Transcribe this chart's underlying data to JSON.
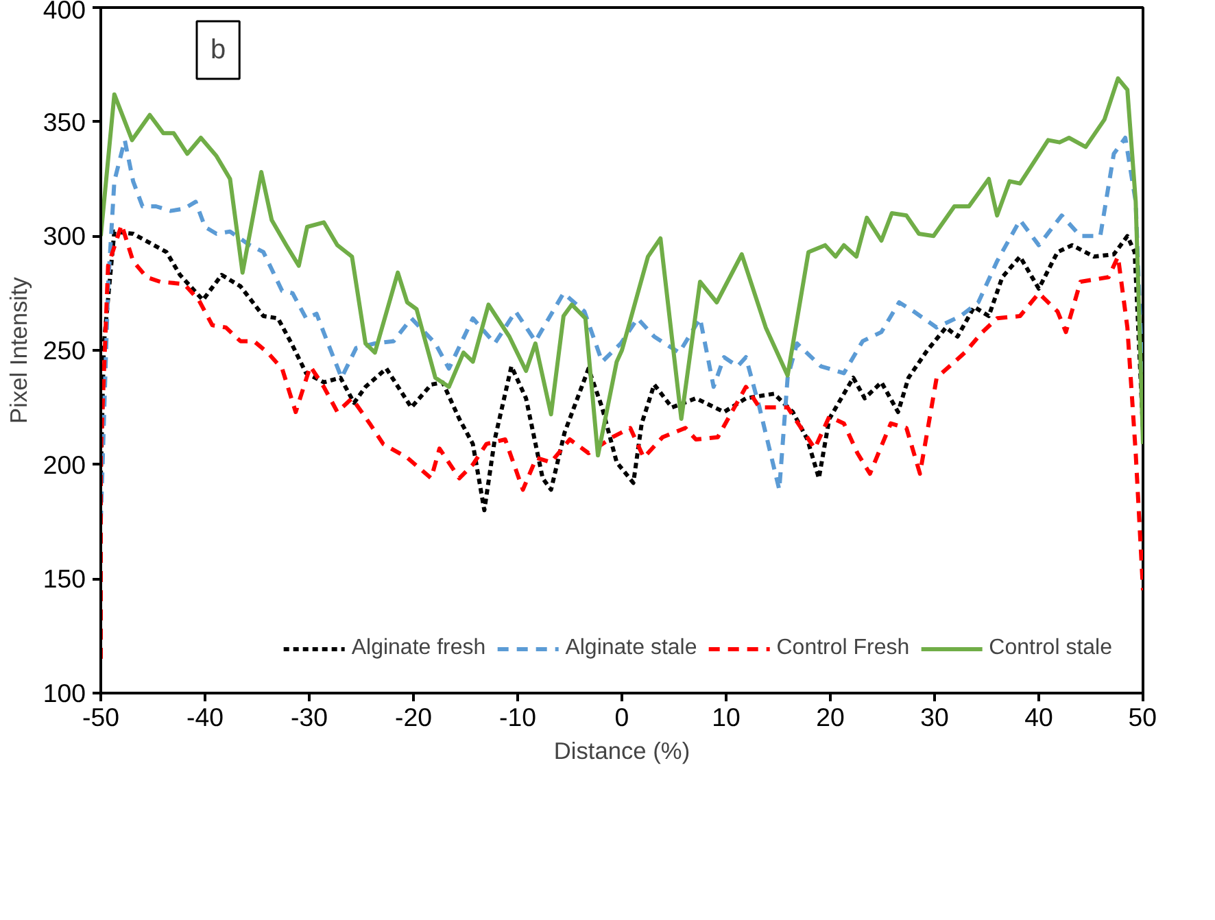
{
  "chart_data": {
    "type": "line",
    "xlabel": "Distance (%)",
    "ylabel": "Pixel Intensity",
    "annotations": [
      "b"
    ],
    "xlim": [
      -50,
      50
    ],
    "xticks": [
      -50,
      -40,
      -30,
      -20,
      -10,
      0,
      10,
      20,
      30,
      40,
      50
    ],
    "ylim": [
      100,
      400
    ],
    "yticks": [
      100,
      150,
      200,
      250,
      300,
      350,
      400
    ],
    "grid": false,
    "legend": "bottom right",
    "marker": "none",
    "series": [
      {
        "name": "Alginate fresh",
        "color": "#000000",
        "line_style": "dotted",
        "x": [
          -50,
          -49.7,
          -48.7,
          -46.9,
          -43.7,
          -42.4,
          -40.2,
          -38.4,
          -36.6,
          -34.4,
          -33,
          -31.7,
          -30.3,
          -28.6,
          -27,
          -25.7,
          -24.6,
          -22.6,
          -20.2,
          -18.3,
          -17.2,
          -15.6,
          -14.3,
          -13.2,
          -12.2,
          -10.6,
          -9.2,
          -7.6,
          -6.8,
          -5.5,
          -3.2,
          -1.9,
          -0.5,
          1.1,
          1.9,
          3.1,
          4.8,
          7.1,
          9.8,
          11.9,
          14.6,
          16.4,
          17.8,
          18.9,
          19.9,
          22.2,
          23.3,
          24.9,
          26.5,
          27.5,
          29.3,
          31.1,
          32.2,
          33.8,
          35.2,
          36.5,
          38.2,
          40,
          41.8,
          43.2,
          45.3,
          47.2,
          48.5,
          49.2,
          50
        ],
        "values": [
          195,
          253,
          302,
          301,
          293,
          283,
          272,
          283,
          278,
          265,
          264,
          253,
          240,
          236,
          238,
          227,
          234,
          242,
          225,
          235,
          236,
          220,
          209,
          180,
          211,
          243,
          229,
          194,
          189,
          214,
          242,
          225,
          201,
          192,
          218,
          235,
          225,
          229,
          223,
          229,
          231,
          223,
          211,
          194,
          220,
          238,
          229,
          236,
          223,
          238,
          250,
          260,
          256,
          269,
          265,
          282,
          291,
          277,
          293,
          296,
          291,
          292,
          300,
          293,
          215
        ]
      },
      {
        "name": "Alginate stale",
        "color": "#5b9bd5",
        "line_style": "dashed",
        "x": [
          -50,
          -49.3,
          -48.7,
          -47.7,
          -46.9,
          -46,
          -44.7,
          -43.3,
          -42,
          -40.9,
          -40,
          -38.9,
          -37.6,
          -35.7,
          -34.4,
          -32.6,
          -31.6,
          -30.3,
          -29.3,
          -28.2,
          -26.9,
          -25.5,
          -23.7,
          -21.9,
          -20.2,
          -17.9,
          -16.6,
          -14.3,
          -12.2,
          -10.2,
          -8.3,
          -5.6,
          -3.6,
          -1.9,
          -0.1,
          1.5,
          3.1,
          5.5,
          7.5,
          8.8,
          9.8,
          11.1,
          11.9,
          13.2,
          15.1,
          15.9,
          16.8,
          19.1,
          21.3,
          23.1,
          24.9,
          26.6,
          28,
          30.2,
          32.5,
          34.2,
          36,
          38.2,
          40,
          42.2,
          44,
          45.9,
          47.2,
          48.3,
          49.3,
          49.9,
          50
        ],
        "values": [
          175,
          278,
          324,
          342,
          324,
          313,
          313,
          311,
          312,
          315,
          304,
          301,
          302,
          296,
          293,
          276,
          275,
          264,
          266,
          253,
          238,
          251,
          253,
          254,
          264,
          253,
          242,
          264,
          253,
          267,
          254,
          275,
          267,
          245,
          253,
          264,
          256,
          249,
          264,
          234,
          247,
          243,
          247,
          225,
          189,
          238,
          253,
          243,
          240,
          254,
          258,
          271,
          267,
          260,
          265,
          271,
          289,
          307,
          296,
          309,
          300,
          300,
          336,
          343,
          315,
          242,
          210
        ]
      },
      {
        "name": "Control Fresh",
        "color": "#ff0000",
        "line_style": "dashed",
        "x": [
          -50,
          -50,
          -49.3,
          -48,
          -46.9,
          -45.6,
          -44.3,
          -42,
          -40.6,
          -39.3,
          -38,
          -36.6,
          -35.3,
          -34,
          -32.6,
          -31.3,
          -29.9,
          -28.6,
          -27.3,
          -25.9,
          -24.2,
          -22.9,
          -20.6,
          -18.3,
          -17.5,
          -15.6,
          -14.3,
          -13,
          -11.2,
          -9.5,
          -8.2,
          -6.8,
          -5,
          -3.2,
          -0.9,
          0.8,
          2.1,
          3.9,
          6.1,
          7.1,
          9.2,
          11.9,
          13.2,
          15.9,
          18.5,
          19.9,
          21.3,
          22.6,
          23.8,
          25.8,
          27.3,
          28.6,
          30.2,
          32.9,
          34.6,
          36,
          38.2,
          40,
          41.8,
          42.6,
          44,
          46.7,
          47.6,
          48.5,
          49.3,
          50
        ],
        "values": [
          115,
          205,
          287,
          305,
          289,
          282,
          280,
          279,
          272,
          261,
          260,
          254,
          254,
          249,
          242,
          223,
          243,
          234,
          223,
          229,
          218,
          209,
          203,
          194,
          207,
          194,
          200,
          209,
          211,
          189,
          203,
          201,
          211,
          205,
          212,
          216,
          203,
          212,
          216,
          211,
          212,
          234,
          225,
          225,
          207,
          221,
          218,
          205,
          196,
          218,
          216,
          196,
          238,
          249,
          258,
          264,
          265,
          275,
          267,
          258,
          280,
          282,
          291,
          260,
          205,
          145
        ]
      },
      {
        "name": "Control stale",
        "color": "#70ad47",
        "line_style": "solid",
        "x": [
          -50,
          -48.7,
          -47,
          -45.3,
          -44,
          -43,
          -41.7,
          -40.4,
          -38.9,
          -37.6,
          -36.4,
          -34.6,
          -33.6,
          -32.2,
          -31,
          -30.2,
          -28.6,
          -27.3,
          -25.9,
          -24.6,
          -23.7,
          -21.5,
          -20.6,
          -19.7,
          -17.9,
          -16.6,
          -15.2,
          -14.3,
          -12.8,
          -10.8,
          -9.2,
          -8.3,
          -6.8,
          -5.6,
          -4.8,
          -3.5,
          -2.3,
          -0.5,
          0,
          2.5,
          3.7,
          5.7,
          7.5,
          9.1,
          11.5,
          13.8,
          15.9,
          17.9,
          19.5,
          20.5,
          21.3,
          22.5,
          23.5,
          24.9,
          25.9,
          27.3,
          28.5,
          29.9,
          31.9,
          33.3,
          35.2,
          36,
          37.2,
          38.2,
          40.9,
          42,
          42.9,
          44.5,
          46.3,
          47.6,
          48.5,
          49.3,
          50
        ],
        "values": [
          300,
          362,
          342,
          353,
          345,
          345,
          336,
          343,
          335,
          325,
          284,
          328,
          307,
          296,
          287,
          304,
          306,
          296,
          291,
          253,
          249,
          284,
          271,
          268,
          238,
          234,
          249,
          245,
          270,
          256,
          241,
          253,
          222,
          265,
          270,
          264,
          204,
          245,
          250,
          291,
          299,
          220,
          280,
          271,
          292,
          260,
          239,
          293,
          296,
          291,
          296,
          291,
          308,
          298,
          310,
          309,
          301,
          300,
          313,
          313,
          325,
          309,
          324,
          323,
          342,
          341,
          343,
          339,
          351,
          369,
          364,
          315,
          209
        ]
      }
    ]
  }
}
